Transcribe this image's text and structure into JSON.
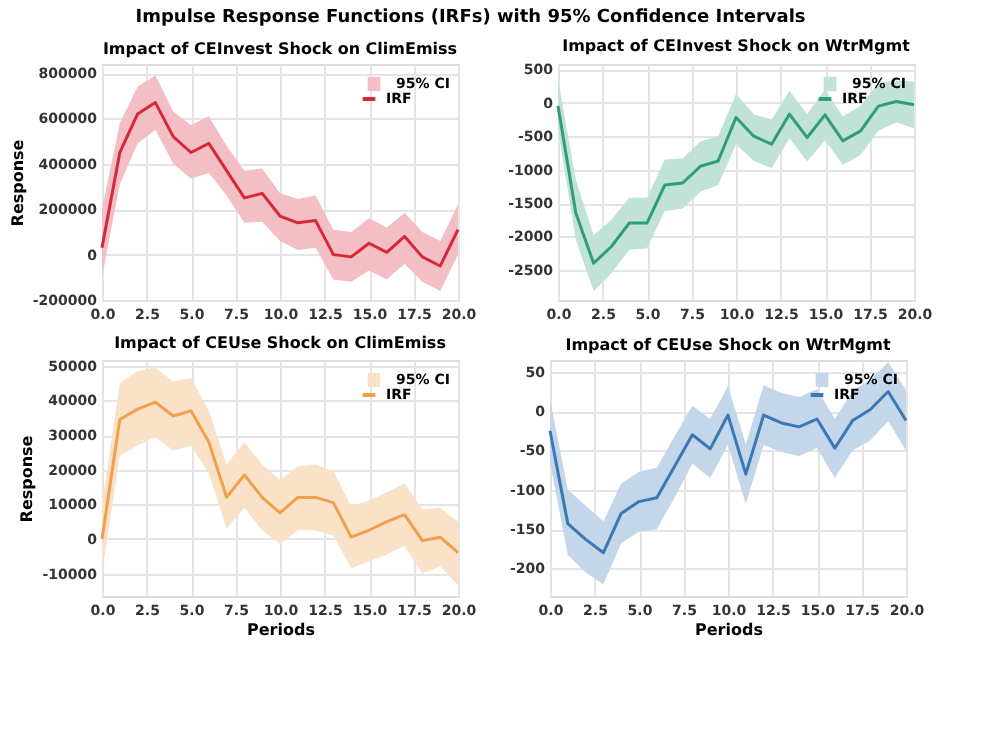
{
  "chart_data": [
    {
      "type": "line",
      "title": "Impact of CEInvest Shock on ClimEmiss",
      "ylabel": "Response",
      "annotations": [
        "Impulse Response Functions (IRFs) with 95% Confidence Intervals",
        "95% CI"
      ],
      "x": [
        0,
        1,
        2,
        3,
        4,
        5,
        6,
        7,
        8,
        9,
        10,
        11,
        12,
        13,
        14,
        15,
        16,
        17,
        18,
        19,
        20
      ],
      "xlim": [
        0,
        20
      ],
      "xticks": [
        {
          "value": 0,
          "label": "0.0"
        },
        {
          "value": 2.5,
          "label": "2.5"
        },
        {
          "value": 5,
          "label": "5.0"
        },
        {
          "value": 7.5,
          "label": "7.5"
        },
        {
          "value": 10,
          "label": "10.0"
        },
        {
          "value": 12.5,
          "label": "12.5"
        },
        {
          "value": 15,
          "label": "15.0"
        },
        {
          "value": 17.5,
          "label": "17.5"
        },
        {
          "value": 20,
          "label": "20.0"
        }
      ],
      "ylim": [
        -200000,
        840000
      ],
      "yticks": [
        -200000,
        0,
        200000,
        400000,
        600000,
        800000
      ],
      "grid": true,
      "legend": "top right",
      "series": [
        {
          "name": "IRF",
          "color": "#d62839",
          "lower": [
            -100000,
            310000,
            490000,
            550000,
            400000,
            335000,
            360000,
            260000,
            140000,
            145000,
            60000,
            20000,
            30000,
            -110000,
            -120000,
            -70000,
            -110000,
            -40000,
            -120000,
            -160000,
            0
          ],
          "upper": [
            200000,
            580000,
            740000,
            790000,
            630000,
            570000,
            610000,
            480000,
            370000,
            380000,
            270000,
            245000,
            260000,
            110000,
            100000,
            160000,
            120000,
            185000,
            100000,
            60000,
            220000
          ],
          "values": [
            30000,
            450000,
            620000,
            670000,
            520000,
            450000,
            490000,
            370000,
            250000,
            270000,
            170000,
            140000,
            150000,
            0,
            -10000,
            50000,
            10000,
            80000,
            -10000,
            -50000,
            110000
          ]
        }
      ]
    },
    {
      "type": "line",
      "title": "Impact of CEInvest Shock on WtrMgmt",
      "annotations": [
        "95% CI"
      ],
      "x": [
        0,
        1,
        2,
        3,
        4,
        5,
        6,
        7,
        8,
        9,
        10,
        11,
        12,
        13,
        14,
        15,
        16,
        17,
        18,
        19,
        20
      ],
      "xlim": [
        0,
        20
      ],
      "xticks": [
        {
          "value": 0,
          "label": "0.0"
        },
        {
          "value": 2.5,
          "label": "2.5"
        },
        {
          "value": 5,
          "label": "5.0"
        },
        {
          "value": 7.5,
          "label": "7.5"
        },
        {
          "value": 10,
          "label": "10.0"
        },
        {
          "value": 12.5,
          "label": "12.5"
        },
        {
          "value": 15,
          "label": "15.0"
        },
        {
          "value": 17.5,
          "label": "17.5"
        },
        {
          "value": 20,
          "label": "20.0"
        }
      ],
      "ylim": [
        -2950,
        580
      ],
      "yticks": [
        -2500,
        -2000,
        -1500,
        -1000,
        -500,
        0,
        500
      ],
      "grid": true,
      "legend": "top right",
      "series": [
        {
          "name": "IRF",
          "color": "#2e9e7a",
          "lower": [
            -400,
            -2050,
            -2820,
            -2550,
            -2200,
            -2180,
            -1620,
            -1580,
            -1330,
            -1230,
            -620,
            -870,
            -980,
            -530,
            -880,
            -560,
            -930,
            -780,
            -420,
            -290,
            -380
          ],
          "upper": [
            350,
            -1150,
            -1980,
            -1750,
            -1420,
            -1420,
            -850,
            -830,
            -580,
            -500,
            130,
            -170,
            -250,
            180,
            -170,
            200,
            -200,
            -50,
            300,
            330,
            320
          ],
          "values": [
            -50,
            -1650,
            -2400,
            -2150,
            -1800,
            -1800,
            -1230,
            -1200,
            -950,
            -870,
            -220,
            -500,
            -620,
            -170,
            -520,
            -180,
            -570,
            -420,
            -50,
            20,
            -30
          ]
        }
      ]
    },
    {
      "type": "line",
      "title": "Impact of CEUse Shock on ClimEmiss",
      "annotations": [
        "95% CI"
      ],
      "xlabel": "Periods",
      "ylabel": "Response",
      "x": [
        0,
        1,
        2,
        3,
        4,
        5,
        6,
        7,
        8,
        9,
        10,
        11,
        12,
        13,
        14,
        15,
        16,
        17,
        18,
        19,
        20
      ],
      "xlim": [
        0,
        20
      ],
      "xticks": [
        {
          "value": 0,
          "label": "0.0"
        },
        {
          "value": 2.5,
          "label": "2.5"
        },
        {
          "value": 5,
          "label": "5.0"
        },
        {
          "value": 7.5,
          "label": "7.5"
        },
        {
          "value": 10,
          "label": "10.0"
        },
        {
          "value": 12.5,
          "label": "12.5"
        },
        {
          "value": 15,
          "label": "15.0"
        },
        {
          "value": 17.5,
          "label": "17.5"
        },
        {
          "value": 20,
          "label": "20.0"
        }
      ],
      "ylim": [
        -16500,
        51700
      ],
      "yticks": [
        -10000,
        0,
        10000,
        20000,
        30000,
        40000,
        50000
      ],
      "grid": true,
      "legend": "top right",
      "series": [
        {
          "name": "IRF",
          "color": "#f0a04b",
          "lower": [
            -10000,
            24000,
            27000,
            29500,
            25500,
            27000,
            19000,
            3000,
            9000,
            2500,
            -1500,
            2500,
            2500,
            1000,
            -8500,
            -6500,
            -4500,
            -2000,
            -10000,
            -8000,
            -13500
          ],
          "upper": [
            10000,
            45000,
            48500,
            49500,
            45500,
            46500,
            37000,
            21500,
            28000,
            21500,
            17000,
            21000,
            21500,
            19500,
            9500,
            11000,
            13500,
            16000,
            8500,
            9000,
            5000
          ],
          "values": [
            0,
            34500,
            37500,
            39500,
            35500,
            37000,
            28000,
            12000,
            18500,
            12000,
            7500,
            12000,
            12000,
            10500,
            500,
            2500,
            5000,
            7000,
            -500,
            500,
            -4000
          ]
        }
      ]
    },
    {
      "type": "line",
      "title": "Impact of CEUse Shock on WtrMgmt",
      "annotations": [
        "95% CI"
      ],
      "xlabel": "Periods",
      "x": [
        0,
        1,
        2,
        3,
        4,
        5,
        6,
        7,
        8,
        9,
        10,
        11,
        12,
        13,
        14,
        15,
        16,
        17,
        18,
        19,
        20
      ],
      "xlim": [
        0,
        20
      ],
      "xticks": [
        {
          "value": 0,
          "label": "0.0"
        },
        {
          "value": 2.5,
          "label": "2.5"
        },
        {
          "value": 5,
          "label": "5.0"
        },
        {
          "value": 7.5,
          "label": "7.5"
        },
        {
          "value": 10,
          "label": "10.0"
        },
        {
          "value": 12.5,
          "label": "12.5"
        },
        {
          "value": 15,
          "label": "15.0"
        },
        {
          "value": 17.5,
          "label": "17.5"
        },
        {
          "value": 20,
          "label": "20.0"
        }
      ],
      "ylim": [
        -235,
        65
      ],
      "yticks": [
        -200,
        -150,
        -100,
        -50,
        0,
        50
      ],
      "grid": true,
      "legend": "top right",
      "series": [
        {
          "name": "IRF",
          "color": "#3a78b5",
          "lower": [
            -65,
            -183,
            -205,
            -220,
            -168,
            -153,
            -150,
            -110,
            -67,
            -85,
            -43,
            -118,
            -43,
            -52,
            -57,
            -47,
            -85,
            -50,
            -37,
            -13,
            -50
          ],
          "upper": [
            15,
            -100,
            -120,
            -140,
            -92,
            -77,
            -72,
            -32,
            7,
            -10,
            32,
            -42,
            33,
            23,
            18,
            28,
            -10,
            26,
            40,
            62,
            27
          ],
          "values": [
            -25,
            -143,
            -163,
            -180,
            -130,
            -115,
            -110,
            -70,
            -30,
            -48,
            -5,
            -80,
            -5,
            -15,
            -20,
            -10,
            -47,
            -12,
            2,
            25,
            -12
          ]
        }
      ]
    }
  ]
}
